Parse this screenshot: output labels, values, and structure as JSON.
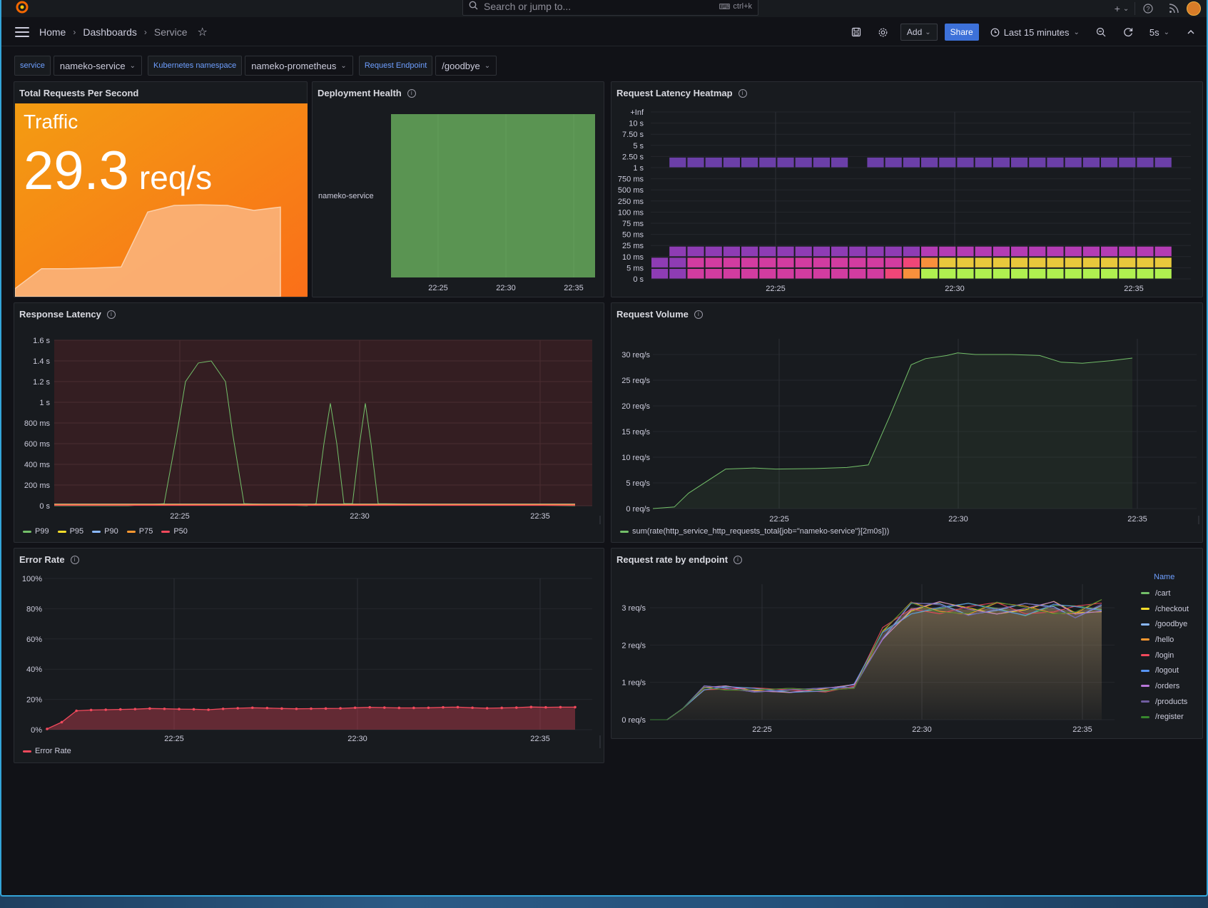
{
  "topbar": {
    "search_placeholder": "Search or jump to...",
    "search_shortcut": "ctrl+k",
    "plus_label": "+"
  },
  "nav": {
    "breadcrumbs": [
      "Home",
      "Dashboards",
      "Service"
    ],
    "add_label": "Add",
    "share_label": "Share",
    "time_range": "Last 15 minutes",
    "refresh_interval": "5s"
  },
  "variables": [
    {
      "label": "service",
      "value": "nameko-service"
    },
    {
      "label": "Kubernetes namespace",
      "value": "nameko-prometheus"
    },
    {
      "label": "Request Endpoint",
      "value": "/goodbye"
    }
  ],
  "panels": {
    "traffic": {
      "title": "Total Requests Per Second",
      "stat_label": "Traffic",
      "value": "29.3",
      "unit": "req/s",
      "sparkline": [
        2,
        8,
        8,
        8.2,
        8.5,
        25,
        27,
        27.2,
        27,
        25.5,
        26.5
      ],
      "colors": {
        "from": "#f39c12",
        "to": "#fa6f19"
      }
    },
    "deployment": {
      "title": "Deployment Health",
      "row_label": "nameko-service",
      "x_ticks": [
        "22:25",
        "22:30",
        "22:35"
      ],
      "status_color": "#5a9452"
    },
    "heatmap": {
      "title": "Request Latency Heatmap",
      "y_ticks": [
        "+Inf",
        "10 s",
        "7.50 s",
        "5 s",
        "2.50 s",
        "1 s",
        "750 ms",
        "500 ms",
        "250 ms",
        "100 ms",
        "75 ms",
        "50 ms",
        "25 ms",
        "10 ms",
        "5 ms",
        "0 s"
      ],
      "x_ticks": [
        "22:25",
        "22:30",
        "22:35"
      ],
      "palette": [
        "#6b3fa8",
        "#8e3cb4",
        "#b43cb4",
        "#d23ca0",
        "#f04678",
        "#f8903c",
        "#e8c83c",
        "#c8e040",
        "#b0f050"
      ]
    },
    "latency": {
      "title": "Response Latency",
      "y_ticks": [
        "1.6 s",
        "1.4 s",
        "1.2 s",
        "1 s",
        "800 ms",
        "600 ms",
        "400 ms",
        "200 ms",
        "0 s"
      ],
      "x_ticks": [
        "22:25",
        "22:30",
        "22:35"
      ],
      "legend": [
        {
          "name": "P99",
          "color": "#73bf69"
        },
        {
          "name": "P95",
          "color": "#fade2a"
        },
        {
          "name": "P90",
          "color": "#8ab8ff"
        },
        {
          "name": "P75",
          "color": "#ff9830"
        },
        {
          "name": "P50",
          "color": "#f2495c"
        }
      ]
    },
    "volume": {
      "title": "Request Volume",
      "y_ticks": [
        "30 req/s",
        "25 req/s",
        "20 req/s",
        "15 req/s",
        "10 req/s",
        "5 req/s",
        "0 req/s"
      ],
      "x_ticks": [
        "22:25",
        "22:30",
        "22:35"
      ],
      "legend": "sum(rate(http_service_http_requests_total{job=\"nameko-service\"}[2m0s]))",
      "color": "#73bf69"
    },
    "error": {
      "title": "Error Rate",
      "y_ticks": [
        "100%",
        "80%",
        "60%",
        "40%",
        "20%",
        "0%"
      ],
      "x_ticks": [
        "22:25",
        "22:30",
        "22:35"
      ],
      "legend": "Error Rate",
      "color": "#f2495c"
    },
    "endpoints": {
      "title": "Request rate by endpoint",
      "y_ticks": [
        "3 req/s",
        "2 req/s",
        "1 req/s",
        "0 req/s"
      ],
      "x_ticks": [
        "22:25",
        "22:30",
        "22:35"
      ],
      "legend_header": "Name",
      "series": [
        {
          "name": "/cart",
          "color": "#73bf69"
        },
        {
          "name": "/checkout",
          "color": "#fade2a"
        },
        {
          "name": "/goodbye",
          "color": "#8ab8ff"
        },
        {
          "name": "/hello",
          "color": "#ff9830"
        },
        {
          "name": "/login",
          "color": "#f2495c"
        },
        {
          "name": "/logout",
          "color": "#5794f2"
        },
        {
          "name": "/orders",
          "color": "#b877d9"
        },
        {
          "name": "/products",
          "color": "#705da0"
        },
        {
          "name": "/register",
          "color": "#37872d"
        }
      ]
    }
  }
}
